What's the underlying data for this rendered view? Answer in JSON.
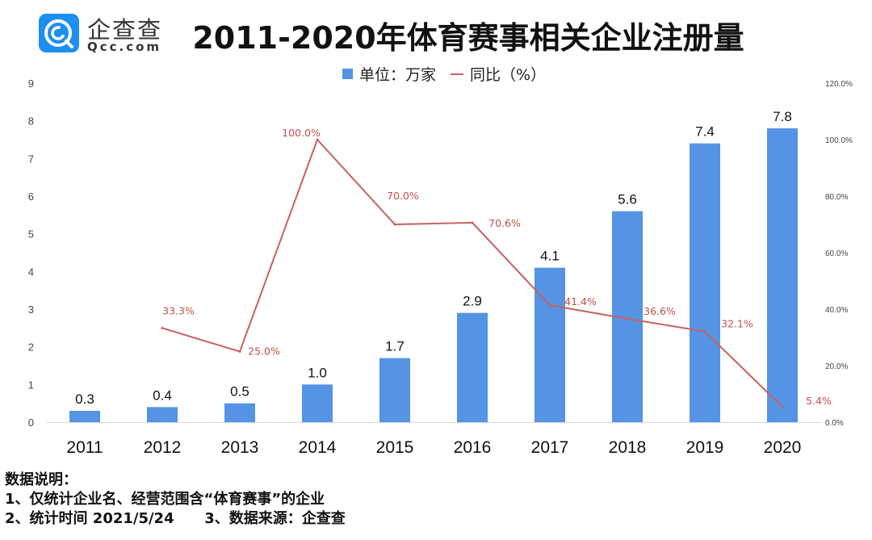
{
  "logo": {
    "name": "企查查",
    "domain": "Qcc.com",
    "brand_color": "#1d8ff0"
  },
  "chart_data": {
    "type": "bar+line",
    "title": "2011-2020年体育赛事相关企业注册量",
    "categories": [
      "2011",
      "2012",
      "2013",
      "2014",
      "2015",
      "2016",
      "2017",
      "2018",
      "2019",
      "2020"
    ],
    "series": [
      {
        "name": "单位：万家",
        "type": "bar",
        "axis": "left",
        "color": "#5593e5",
        "values": [
          0.3,
          0.4,
          0.5,
          1.0,
          1.7,
          2.9,
          4.1,
          5.6,
          7.4,
          7.8
        ],
        "labels": [
          "0.3",
          "0.4",
          "0.5",
          "1.0",
          "1.7",
          "2.9",
          "4.1",
          "5.6",
          "7.4",
          "7.8"
        ]
      },
      {
        "name": "同比（%）",
        "type": "line",
        "axis": "right",
        "color": "#c8615f",
        "values": [
          null,
          33.3,
          25.0,
          100.0,
          70.0,
          70.6,
          41.4,
          36.6,
          32.1,
          5.4
        ],
        "labels": [
          "",
          "33.3%",
          "25.0%",
          "100.0%",
          "70.0%",
          "70.6%",
          "41.4%",
          "36.6%",
          "32.1%",
          "5.4%"
        ]
      }
    ],
    "y_left": {
      "range": [
        0,
        9
      ],
      "ticks": [
        "0",
        "1",
        "2",
        "3",
        "4",
        "5",
        "6",
        "7",
        "8",
        "9"
      ]
    },
    "y_right": {
      "range": [
        0,
        120
      ],
      "ticks": [
        "0.0%",
        "20.0%",
        "40.0%",
        "60.0%",
        "80.0%",
        "100.0%",
        "120.0%"
      ]
    },
    "grid": false,
    "legend": "top-center"
  },
  "notes": {
    "heading": "数据说明：",
    "line1": "1、仅统计企业名、经营范围含“体育赛事”的企业",
    "line2": "2、统计时间 2021/5/24      3、数据来源：企查查"
  }
}
